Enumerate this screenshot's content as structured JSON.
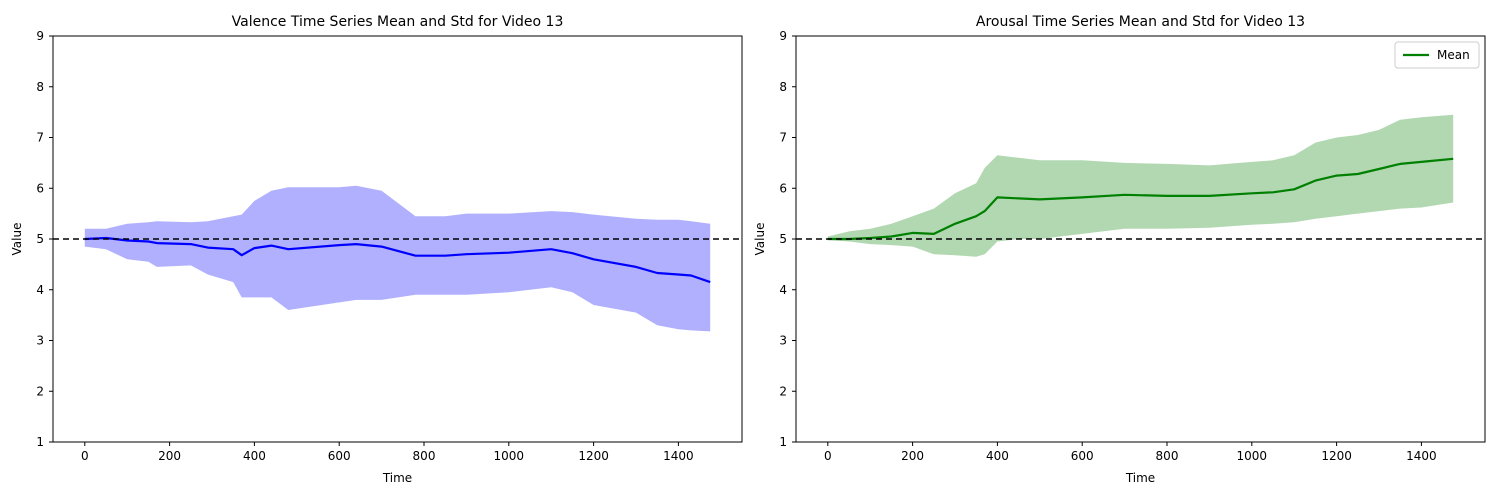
{
  "chart_data": [
    {
      "type": "line",
      "title": "Valence Time Series Mean and Std for Video 13",
      "xlabel": "Time",
      "ylabel": "Value",
      "xlim": [
        -75,
        1550
      ],
      "ylim": [
        1,
        9
      ],
      "xticks": [
        0,
        200,
        400,
        600,
        800,
        1000,
        1200,
        1400
      ],
      "yticks": [
        1,
        2,
        3,
        4,
        5,
        6,
        7,
        8,
        9
      ],
      "reference_line": {
        "y": 5,
        "style": "dashed",
        "color": "#000000"
      },
      "legend": null,
      "series": [
        {
          "color": "#0000ff",
          "band_color": "#b0b0ff",
          "x": [
            0,
            50,
            100,
            150,
            170,
            250,
            290,
            350,
            370,
            400,
            440,
            480,
            600,
            640,
            700,
            780,
            850,
            900,
            1000,
            1100,
            1150,
            1200,
            1300,
            1350,
            1400,
            1430,
            1475
          ],
          "mean": [
            5.0,
            5.02,
            4.97,
            4.95,
            4.92,
            4.9,
            4.83,
            4.8,
            4.68,
            4.82,
            4.87,
            4.8,
            4.88,
            4.9,
            4.85,
            4.67,
            4.67,
            4.7,
            4.73,
            4.8,
            4.72,
            4.6,
            4.45,
            4.33,
            4.3,
            4.28,
            4.15
          ],
          "upper": [
            5.2,
            5.2,
            5.3,
            5.33,
            5.35,
            5.33,
            5.35,
            5.45,
            5.48,
            5.75,
            5.95,
            6.02,
            6.02,
            6.05,
            5.95,
            5.45,
            5.45,
            5.5,
            5.5,
            5.55,
            5.53,
            5.48,
            5.4,
            5.38,
            5.38,
            5.35,
            5.3
          ],
          "lower": [
            4.85,
            4.8,
            4.6,
            4.55,
            4.45,
            4.48,
            4.3,
            4.15,
            3.85,
            3.85,
            3.85,
            3.6,
            3.75,
            3.8,
            3.8,
            3.9,
            3.9,
            3.9,
            3.95,
            4.05,
            3.95,
            3.7,
            3.55,
            3.3,
            3.22,
            3.2,
            3.18
          ]
        }
      ]
    },
    {
      "type": "line",
      "title": "Arousal Time Series Mean and Std for Video 13",
      "xlabel": "Time",
      "ylabel": "Value",
      "xlim": [
        -75,
        1550
      ],
      "ylim": [
        1,
        9
      ],
      "xticks": [
        0,
        200,
        400,
        600,
        800,
        1000,
        1200,
        1400
      ],
      "yticks": [
        1,
        2,
        3,
        4,
        5,
        6,
        7,
        8,
        9
      ],
      "reference_line": {
        "y": 5,
        "style": "dashed",
        "color": "#000000"
      },
      "legend": {
        "placement": "top-right",
        "entries": [
          "Mean"
        ]
      },
      "series": [
        {
          "name": "Mean",
          "color": "#008000",
          "band_color": "#b2d8b2",
          "x": [
            0,
            50,
            100,
            150,
            200,
            250,
            300,
            350,
            370,
            400,
            450,
            500,
            600,
            700,
            800,
            900,
            1000,
            1050,
            1100,
            1150,
            1200,
            1250,
            1300,
            1350,
            1400,
            1475
          ],
          "mean": [
            5.0,
            5.0,
            5.02,
            5.05,
            5.12,
            5.1,
            5.3,
            5.45,
            5.55,
            5.82,
            5.8,
            5.78,
            5.82,
            5.87,
            5.85,
            5.85,
            5.9,
            5.92,
            5.98,
            6.15,
            6.25,
            6.28,
            6.38,
            6.48,
            6.52,
            6.58
          ],
          "upper": [
            5.05,
            5.15,
            5.2,
            5.3,
            5.45,
            5.6,
            5.9,
            6.1,
            6.4,
            6.65,
            6.6,
            6.55,
            6.55,
            6.5,
            6.48,
            6.45,
            6.52,
            6.55,
            6.65,
            6.9,
            7.0,
            7.05,
            7.15,
            7.35,
            7.4,
            7.45
          ],
          "lower": [
            4.98,
            4.95,
            4.9,
            4.88,
            4.85,
            4.7,
            4.68,
            4.65,
            4.7,
            4.95,
            5.0,
            5.0,
            5.1,
            5.2,
            5.2,
            5.22,
            5.28,
            5.3,
            5.33,
            5.4,
            5.45,
            5.5,
            5.55,
            5.6,
            5.62,
            5.72
          ]
        }
      ]
    }
  ]
}
